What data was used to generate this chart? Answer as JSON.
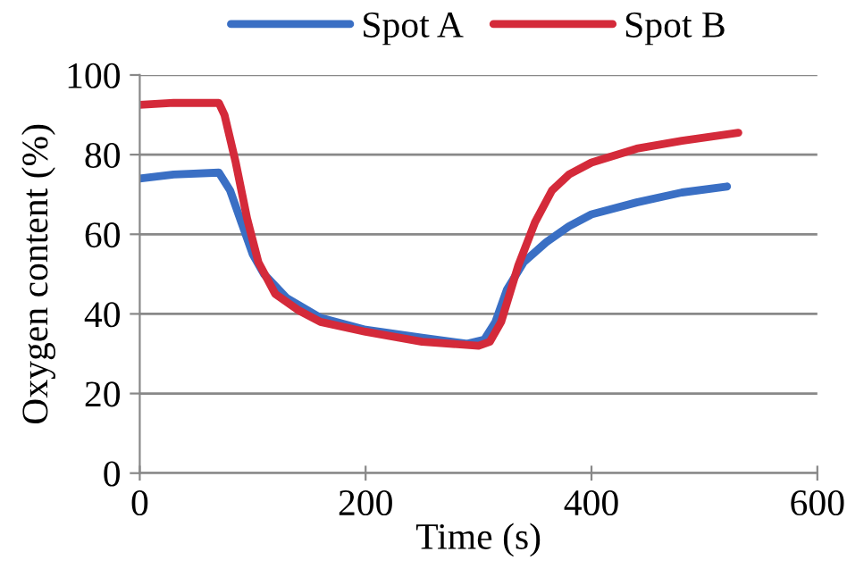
{
  "chart_data": {
    "type": "line",
    "xlabel": "Time (s)",
    "ylabel": "Oxygen content (%)",
    "xlim": [
      0,
      600
    ],
    "xticks": [
      0,
      200,
      400,
      600
    ],
    "ylim": [
      0,
      100
    ],
    "yticks": [
      0,
      20,
      40,
      60,
      80,
      100
    ],
    "grid": "y",
    "legend": "top",
    "marker": "none",
    "line_style": "solid",
    "series": [
      {
        "name": "Spot A",
        "color": "#3a6fc4",
        "x": [
          0,
          30,
          70,
          80,
          90,
          100,
          110,
          130,
          160,
          200,
          250,
          290,
          305,
          315,
          325,
          340,
          360,
          380,
          400,
          440,
          480,
          520
        ],
        "values": [
          74,
          75,
          75.5,
          71,
          63,
          55,
          50,
          44,
          39,
          36,
          34,
          32.5,
          33.5,
          38,
          46,
          53,
          58,
          62,
          65,
          68,
          70.5,
          72
        ]
      },
      {
        "name": "Spot B",
        "color": "#d42a3a",
        "x": [
          0,
          30,
          70,
          75,
          85,
          95,
          105,
          120,
          140,
          160,
          200,
          250,
          300,
          310,
          320,
          335,
          350,
          365,
          380,
          400,
          440,
          480,
          530
        ],
        "values": [
          92.5,
          93,
          93,
          90,
          78,
          64,
          53,
          45,
          41,
          38,
          35.5,
          33,
          32,
          33,
          38,
          52,
          63,
          71,
          75,
          78,
          81.5,
          83.5,
          85.5
        ]
      }
    ]
  }
}
